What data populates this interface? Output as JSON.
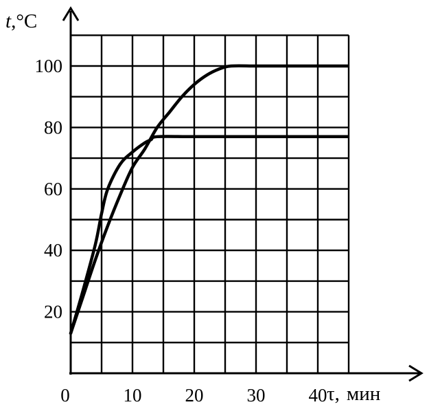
{
  "chart_data": {
    "type": "line",
    "ylabel": {
      "var": "t",
      "unit": ",°C"
    },
    "xlabel": {
      "var": "τ,",
      "unit": "мин"
    },
    "xlim": [
      0,
      45
    ],
    "ylim": [
      0,
      110
    ],
    "x_ticks": [
      0,
      10,
      20,
      30,
      40
    ],
    "x_tick_labels": [
      "0",
      "10",
      "20",
      "30",
      "40"
    ],
    "y_ticks": [
      20,
      40,
      60,
      80,
      100
    ],
    "y_tick_labels": [
      "20",
      "40",
      "60",
      "80",
      "100"
    ],
    "grid": true,
    "series": [
      {
        "x": [
          0,
          2,
          4,
          6,
          8,
          10,
          12,
          14,
          16,
          18,
          20,
          22,
          24,
          26,
          30,
          35,
          40,
          45
        ],
        "values": [
          13,
          25,
          37,
          48,
          58,
          67,
          73,
          80,
          85,
          90,
          94,
          97,
          99,
          100,
          100,
          100,
          100,
          100
        ]
      },
      {
        "x": [
          0,
          2,
          4,
          5,
          6,
          8,
          10,
          12,
          13,
          14,
          20,
          30,
          40,
          45
        ],
        "values": [
          13,
          27,
          42,
          52,
          60,
          68,
          72,
          75,
          76,
          77,
          77,
          77,
          77,
          77
        ]
      }
    ],
    "line_color": "#000000"
  }
}
